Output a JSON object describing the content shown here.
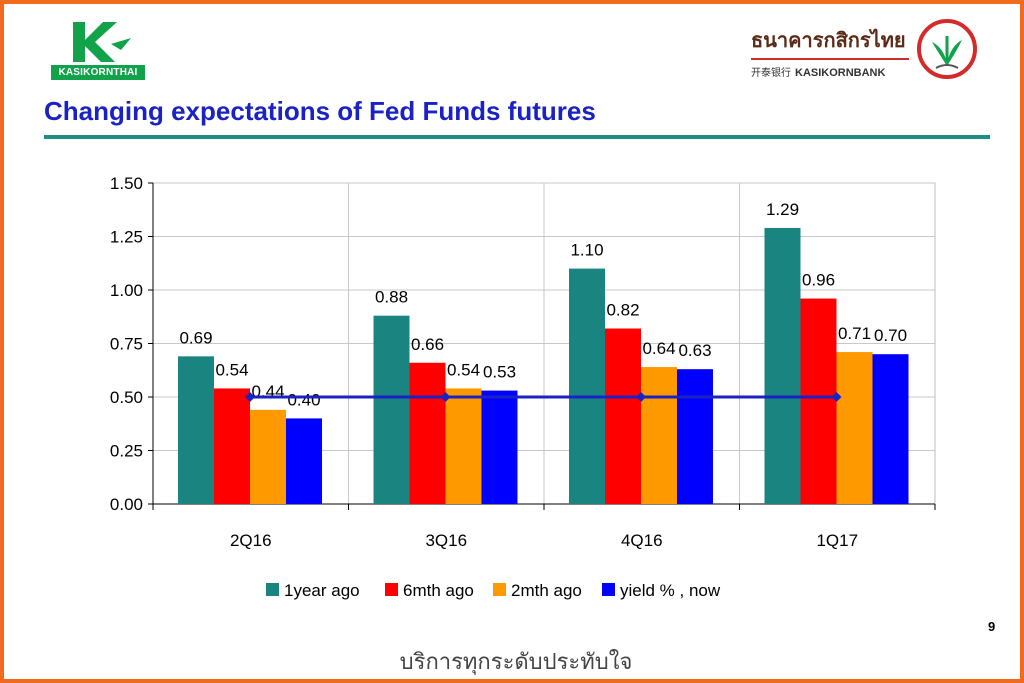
{
  "header": {
    "left_logo_text": "KASIKORNTHAI",
    "right_logo_thai": "ธนาคารกสิกรไทย",
    "right_logo_chinese": "开泰银行",
    "right_logo_english": "KASIKORNBANK"
  },
  "slide": {
    "title": "Changing expectations of Fed Funds futures",
    "page_number": "9",
    "footer_slogan": "บริการทุกระดับประทับใจ"
  },
  "colors": {
    "frame": "#f26a1e",
    "title": "#1a22c4",
    "rule": "#1b8f87"
  },
  "chart_data": {
    "type": "bar",
    "categories": [
      "2Q16",
      "3Q16",
      "4Q16",
      "1Q17"
    ],
    "ylim": [
      0,
      1.5
    ],
    "yticks": [
      "0.00",
      "0.25",
      "0.50",
      "0.75",
      "1.00",
      "1.25",
      "1.50"
    ],
    "grid": true,
    "legend_position": "bottom",
    "series": [
      {
        "name": "1year ago",
        "color": "#1a8480",
        "values": [
          0.69,
          0.88,
          1.1,
          1.29
        ],
        "labels": [
          "0.69",
          "0.88",
          "1.10",
          "1.29"
        ]
      },
      {
        "name": "6mth ago",
        "color": "#ff0000",
        "values": [
          0.54,
          0.66,
          0.82,
          0.96
        ],
        "labels": [
          "0.54",
          "0.66",
          "0.82",
          "0.96"
        ]
      },
      {
        "name": "2mth ago",
        "color": "#ff9900",
        "values": [
          0.44,
          0.54,
          0.64,
          0.71
        ],
        "labels": [
          "0.44",
          "0.54",
          "0.64",
          "0.71"
        ]
      },
      {
        "name": "yield % , now",
        "color": "#0000ff",
        "values": [
          0.4,
          0.53,
          0.63,
          0.7
        ],
        "labels": [
          "0.40",
          "0.53",
          "0.63",
          "0.70"
        ]
      }
    ],
    "reference_line": {
      "value": 0.5,
      "color": "#1a22c4"
    }
  }
}
